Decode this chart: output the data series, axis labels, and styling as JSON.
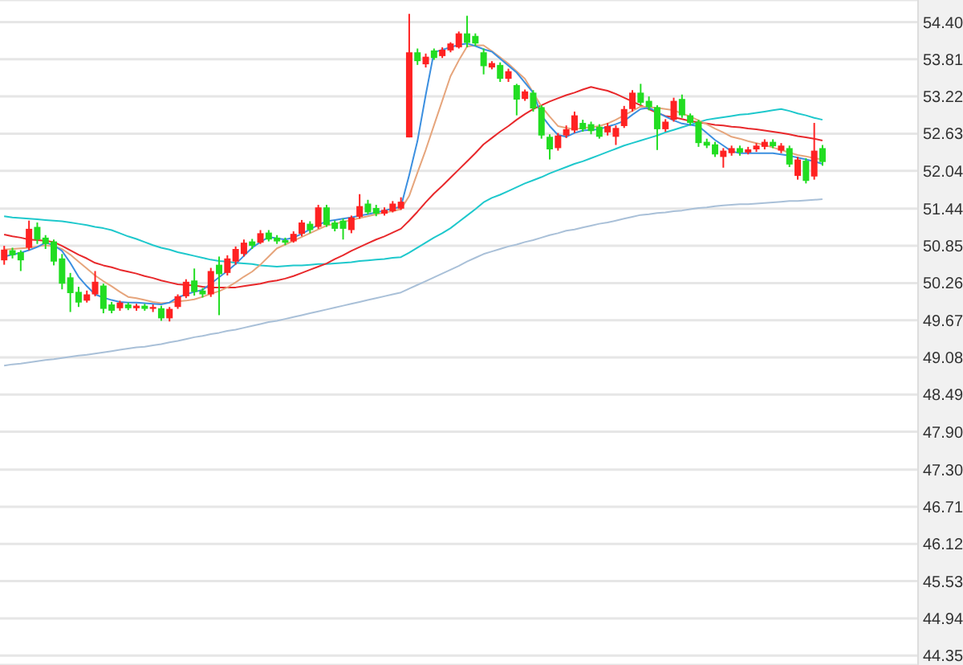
{
  "chart_data": {
    "type": "candlestick",
    "categories": [
      null,
      null,
      null,
      null,
      null,
      null,
      null,
      null,
      null,
      null,
      null,
      null,
      null,
      null,
      null,
      null,
      null,
      null,
      null,
      null,
      null,
      null,
      null,
      null,
      null,
      null,
      null,
      null,
      null,
      null,
      null,
      null,
      null,
      null,
      null,
      null,
      null,
      null,
      null,
      null,
      null,
      null,
      null,
      null,
      null,
      null,
      null,
      null,
      null,
      null,
      null,
      null,
      null,
      null,
      null,
      null,
      null,
      null,
      null,
      null,
      null,
      null,
      null,
      null,
      null,
      null,
      null,
      null,
      null,
      null,
      null,
      null,
      null,
      null,
      null,
      null,
      null,
      null,
      null,
      null,
      null,
      null,
      null,
      null,
      null,
      null,
      null,
      null,
      null,
      null,
      null,
      null,
      null,
      null,
      null,
      null,
      null,
      null,
      null,
      null
    ],
    "ohlc": [
      [
        50.62,
        50.85,
        50.55,
        50.79
      ],
      [
        50.78,
        50.82,
        50.65,
        50.7
      ],
      [
        50.75,
        50.78,
        50.45,
        50.62
      ],
      [
        50.82,
        51.25,
        50.78,
        51.12
      ],
      [
        51.15,
        51.22,
        50.88,
        50.95
      ],
      [
        50.98,
        51.02,
        50.8,
        50.88
      ],
      [
        50.92,
        50.95,
        50.54,
        50.6
      ],
      [
        50.65,
        50.72,
        50.16,
        50.25
      ],
      [
        50.35,
        50.42,
        49.8,
        50.1
      ],
      [
        50.12,
        50.2,
        49.88,
        49.95
      ],
      [
        49.98,
        50.14,
        49.95,
        50.08
      ],
      [
        50.08,
        50.45,
        50.05,
        50.28
      ],
      [
        50.22,
        50.25,
        49.78,
        49.85
      ],
      [
        49.92,
        49.96,
        49.78,
        49.82
      ],
      [
        49.86,
        49.98,
        49.82,
        49.95
      ],
      [
        49.92,
        49.95,
        49.83,
        49.86
      ],
      [
        49.86,
        49.93,
        49.82,
        49.9
      ],
      [
        49.9,
        49.93,
        49.82,
        49.85
      ],
      [
        49.85,
        49.92,
        49.8,
        49.88
      ],
      [
        49.86,
        49.9,
        49.66,
        49.7
      ],
      [
        49.7,
        49.88,
        49.65,
        49.85
      ],
      [
        49.88,
        50.08,
        49.85,
        50.05
      ],
      [
        50.05,
        50.32,
        50.02,
        50.28
      ],
      [
        50.3,
        50.49,
        50.06,
        50.12
      ],
      [
        50.14,
        50.18,
        50.03,
        50.08
      ],
      [
        50.08,
        50.5,
        50.04,
        50.45
      ],
      [
        50.55,
        50.68,
        49.75,
        50.4
      ],
      [
        50.42,
        50.7,
        50.38,
        50.65
      ],
      [
        50.6,
        50.84,
        50.55,
        50.8
      ],
      [
        50.72,
        50.95,
        50.68,
        50.9
      ],
      [
        50.92,
        50.96,
        50.8,
        50.85
      ],
      [
        50.9,
        51.1,
        50.88,
        51.05
      ],
      [
        51.06,
        51.1,
        50.92,
        50.95
      ],
      [
        50.98,
        51.02,
        50.88,
        50.92
      ],
      [
        50.94,
        50.98,
        50.86,
        50.9
      ],
      [
        50.92,
        51.08,
        50.9,
        51.04
      ],
      [
        51.04,
        51.26,
        51.0,
        51.22
      ],
      [
        51.2,
        51.24,
        51.05,
        51.1
      ],
      [
        51.15,
        51.5,
        51.12,
        51.46
      ],
      [
        51.46,
        51.5,
        51.15,
        51.18
      ],
      [
        51.22,
        51.25,
        51.08,
        51.12
      ],
      [
        51.25,
        51.28,
        50.95,
        51.12
      ],
      [
        51.1,
        51.33,
        51.05,
        51.3
      ],
      [
        51.31,
        51.67,
        51.28,
        51.48
      ],
      [
        51.52,
        51.58,
        51.35,
        51.38
      ],
      [
        51.45,
        51.5,
        51.32,
        51.36
      ],
      [
        51.36,
        51.46,
        51.33,
        51.42
      ],
      [
        51.4,
        51.56,
        51.38,
        51.52
      ],
      [
        51.44,
        51.62,
        51.42,
        51.55
      ],
      [
        52.57,
        54.53,
        52.57,
        53.92
      ],
      [
        53.92,
        53.98,
        53.72,
        53.78
      ],
      [
        53.73,
        53.9,
        53.68,
        53.85
      ],
      [
        53.95,
        53.98,
        53.8,
        53.83
      ],
      [
        53.86,
        54.0,
        53.83,
        53.96
      ],
      [
        53.95,
        54.08,
        53.92,
        54.06
      ],
      [
        54.0,
        54.25,
        53.98,
        54.22
      ],
      [
        54.22,
        54.5,
        54.0,
        54.07
      ],
      [
        54.18,
        54.22,
        54.02,
        54.06
      ],
      [
        53.92,
        53.98,
        53.57,
        53.7
      ],
      [
        53.68,
        53.78,
        53.65,
        53.75
      ],
      [
        53.72,
        53.76,
        53.45,
        53.5
      ],
      [
        53.5,
        53.66,
        53.45,
        53.62
      ],
      [
        53.4,
        53.42,
        52.92,
        53.17
      ],
      [
        53.18,
        53.33,
        53.15,
        53.3
      ],
      [
        53.28,
        53.32,
        52.98,
        53.03
      ],
      [
        53.05,
        53.08,
        52.55,
        52.6
      ],
      [
        52.58,
        52.62,
        52.22,
        52.38
      ],
      [
        52.4,
        52.64,
        52.36,
        52.6
      ],
      [
        52.6,
        52.76,
        52.56,
        52.7
      ],
      [
        52.68,
        52.98,
        52.64,
        52.92
      ],
      [
        52.8,
        52.85,
        52.66,
        52.7
      ],
      [
        52.78,
        52.82,
        52.62,
        52.67
      ],
      [
        52.74,
        52.78,
        52.55,
        52.58
      ],
      [
        52.65,
        52.8,
        52.6,
        52.75
      ],
      [
        52.58,
        52.76,
        52.45,
        52.72
      ],
      [
        52.75,
        53.07,
        52.72,
        53.02
      ],
      [
        53.02,
        53.32,
        52.98,
        53.28
      ],
      [
        53.28,
        53.42,
        53.08,
        53.12
      ],
      [
        53.15,
        53.22,
        53.0,
        53.05
      ],
      [
        53.05,
        53.08,
        52.37,
        52.7
      ],
      [
        52.7,
        52.86,
        52.66,
        52.82
      ],
      [
        52.85,
        53.2,
        52.82,
        53.15
      ],
      [
        53.18,
        53.25,
        52.88,
        52.92
      ],
      [
        52.92,
        52.95,
        52.76,
        52.8
      ],
      [
        52.82,
        52.85,
        52.42,
        52.48
      ],
      [
        52.5,
        52.55,
        52.4,
        52.44
      ],
      [
        52.46,
        52.5,
        52.26,
        52.3
      ],
      [
        52.26,
        52.4,
        52.09,
        52.36
      ],
      [
        52.32,
        52.44,
        52.28,
        52.4
      ],
      [
        52.4,
        52.44,
        52.28,
        52.33
      ],
      [
        52.33,
        52.42,
        52.3,
        52.38
      ],
      [
        52.38,
        52.48,
        52.34,
        52.44
      ],
      [
        52.42,
        52.54,
        52.38,
        52.5
      ],
      [
        52.5,
        52.54,
        52.4,
        52.43
      ],
      [
        52.36,
        52.48,
        52.32,
        52.44
      ],
      [
        52.4,
        52.44,
        52.1,
        52.14
      ],
      [
        51.96,
        52.26,
        51.9,
        52.22
      ],
      [
        52.2,
        52.24,
        51.84,
        51.88
      ],
      [
        51.95,
        52.8,
        51.9,
        52.36
      ],
      [
        52.4,
        52.45,
        52.12,
        52.18
      ]
    ],
    "colors": [
      "#ff2222",
      "#22dd22",
      "#22dd22",
      "#ff2222",
      "#22dd22",
      "#22dd22",
      "#22dd22",
      "#22dd22",
      "#22dd22",
      "#22dd22",
      "#ff2222",
      "#ff2222",
      "#22dd22",
      "#22dd22",
      "#ff2222",
      "#22dd22",
      "#ff2222",
      "#22dd22",
      "#ff2222",
      "#22dd22",
      "#ff2222",
      "#ff2222",
      "#ff2222",
      "#22dd22",
      "#22dd22",
      "#ff2222",
      "#22dd22",
      "#ff2222",
      "#ff2222",
      "#ff2222",
      "#22dd22",
      "#ff2222",
      "#22dd22",
      "#22dd22",
      "#22dd22",
      "#ff2222",
      "#ff2222",
      "#22dd22",
      "#ff2222",
      "#22dd22",
      "#22dd22",
      "#22dd22",
      "#ff2222",
      "#ff2222",
      "#22dd22",
      "#22dd22",
      "#ff2222",
      "#ff2222",
      "#ff2222",
      "#ff2222",
      "#22dd22",
      "#ff2222",
      "#22dd22",
      "#ff2222",
      "#ff2222",
      "#ff2222",
      "#22dd22",
      "#22dd22",
      "#22dd22",
      "#ff2222",
      "#22dd22",
      "#ff2222",
      "#22dd22",
      "#ff2222",
      "#22dd22",
      "#22dd22",
      "#22dd22",
      "#ff2222",
      "#ff2222",
      "#ff2222",
      "#22dd22",
      "#22dd22",
      "#22dd22",
      "#ff2222",
      "#ff2222",
      "#ff2222",
      "#ff2222",
      "#22dd22",
      "#22dd22",
      "#22dd22",
      "#ff2222",
      "#ff2222",
      "#22dd22",
      "#22dd22",
      "#22dd22",
      "#22dd22",
      "#22dd22",
      "#ff2222",
      "#ff2222",
      "#22dd22",
      "#ff2222",
      "#ff2222",
      "#ff2222",
      "#22dd22",
      "#ff2222",
      "#22dd22",
      "#ff2222",
      "#22dd22",
      "#ff2222",
      "#22dd22"
    ],
    "series": [
      {
        "type": "line",
        "color": "#a9c0d8",
        "values": [
          48.95,
          48.97,
          48.98,
          49.0,
          49.02,
          49.04,
          49.05,
          49.07,
          49.09,
          49.11,
          49.12,
          49.14,
          49.16,
          49.18,
          49.2,
          49.22,
          49.24,
          49.25,
          49.27,
          49.29,
          49.32,
          49.34,
          49.37,
          49.4,
          49.42,
          49.45,
          49.47,
          49.5,
          49.52,
          49.55,
          49.58,
          49.61,
          49.64,
          49.66,
          49.69,
          49.72,
          49.75,
          49.78,
          49.81,
          49.84,
          49.87,
          49.9,
          49.93,
          49.96,
          49.99,
          50.02,
          50.05,
          50.08,
          50.11,
          50.17,
          50.23,
          50.29,
          50.35,
          50.41,
          50.47,
          50.53,
          50.6,
          50.66,
          50.72,
          50.76,
          50.8,
          50.84,
          50.87,
          50.91,
          50.94,
          50.98,
          51.02,
          51.05,
          51.09,
          51.11,
          51.14,
          51.17,
          51.2,
          51.22,
          51.25,
          51.28,
          51.31,
          51.34,
          51.35,
          51.37,
          51.38,
          51.4,
          51.41,
          51.43,
          51.45,
          51.46,
          51.48,
          51.49,
          51.5,
          51.51,
          51.51,
          51.52,
          51.53,
          51.54,
          51.55,
          51.56,
          51.56,
          51.57,
          51.58,
          51.59
        ]
      },
      {
        "type": "line",
        "color": "#1ec8cc",
        "values": [
          51.32,
          51.3,
          51.29,
          51.28,
          51.27,
          51.26,
          51.25,
          51.24,
          51.22,
          51.2,
          51.18,
          51.15,
          51.13,
          51.1,
          51.05,
          51.0,
          50.96,
          50.91,
          50.86,
          50.82,
          50.79,
          50.75,
          50.72,
          50.69,
          50.66,
          50.63,
          50.61,
          50.6,
          50.58,
          50.57,
          50.56,
          50.54,
          50.53,
          50.52,
          50.53,
          50.54,
          50.54,
          50.55,
          50.56,
          50.56,
          50.57,
          50.58,
          50.59,
          50.61,
          50.62,
          50.63,
          50.64,
          50.66,
          50.67,
          50.74,
          50.82,
          50.9,
          50.98,
          51.05,
          51.13,
          51.23,
          51.33,
          51.43,
          51.54,
          51.61,
          51.66,
          51.72,
          51.78,
          51.84,
          51.89,
          51.94,
          52.0,
          52.05,
          52.1,
          52.15,
          52.19,
          52.24,
          52.29,
          52.34,
          52.39,
          52.44,
          52.48,
          52.52,
          52.56,
          52.6,
          52.65,
          52.69,
          52.73,
          52.77,
          52.81,
          52.85,
          52.87,
          52.89,
          52.91,
          52.93,
          52.94,
          52.96,
          52.98,
          53.0,
          53.02,
          52.99,
          52.95,
          52.92,
          52.88,
          52.85
        ]
      },
      {
        "type": "line",
        "color": "#e8282b",
        "values": [
          51.03,
          51.0,
          50.98,
          50.95,
          50.94,
          50.93,
          50.91,
          50.85,
          50.78,
          50.71,
          50.65,
          50.58,
          50.54,
          50.51,
          50.47,
          50.44,
          50.41,
          50.37,
          50.34,
          50.3,
          50.27,
          50.24,
          50.23,
          50.22,
          50.2,
          50.19,
          50.19,
          50.19,
          50.19,
          50.21,
          50.23,
          50.25,
          50.28,
          50.3,
          50.33,
          50.37,
          50.42,
          50.47,
          50.52,
          50.57,
          50.64,
          50.7,
          50.77,
          50.83,
          50.89,
          50.95,
          51.0,
          51.06,
          51.12,
          51.25,
          51.39,
          51.54,
          51.68,
          51.8,
          51.93,
          52.06,
          52.19,
          52.32,
          52.46,
          52.56,
          52.66,
          52.75,
          52.85,
          52.94,
          53.02,
          53.08,
          53.14,
          53.19,
          53.24,
          53.28,
          53.33,
          53.37,
          53.34,
          53.31,
          53.26,
          53.2,
          53.14,
          53.08,
          53.02,
          52.96,
          52.91,
          52.89,
          52.86,
          52.83,
          52.81,
          52.79,
          52.77,
          52.76,
          52.74,
          52.73,
          52.71,
          52.7,
          52.68,
          52.66,
          52.64,
          52.62,
          52.59,
          52.57,
          52.55,
          52.52
        ]
      },
      {
        "type": "line",
        "color": "#e6a57c",
        "values": [
          50.79,
          50.8,
          50.81,
          50.82,
          50.84,
          50.86,
          50.84,
          50.8,
          50.71,
          50.6,
          50.49,
          50.38,
          50.29,
          50.21,
          50.12,
          50.04,
          50.02,
          49.99,
          49.96,
          49.94,
          49.95,
          49.97,
          49.98,
          50.0,
          50.04,
          50.09,
          50.13,
          50.19,
          50.27,
          50.36,
          50.44,
          50.55,
          50.68,
          50.81,
          50.87,
          50.93,
          50.99,
          51.05,
          51.11,
          51.17,
          51.2,
          51.23,
          51.26,
          51.29,
          51.32,
          51.35,
          51.38,
          51.4,
          51.43,
          51.64,
          52.01,
          52.37,
          52.76,
          53.15,
          53.54,
          53.79,
          54.01,
          54.03,
          54.03,
          53.94,
          53.84,
          53.74,
          53.62,
          53.5,
          53.28,
          53.06,
          52.9,
          52.75,
          52.72,
          52.7,
          52.72,
          52.73,
          52.75,
          52.79,
          52.85,
          52.92,
          52.99,
          53.06,
          53.05,
          53.04,
          53.02,
          53.0,
          52.95,
          52.9,
          52.84,
          52.78,
          52.71,
          52.65,
          52.58,
          52.55,
          52.51,
          52.48,
          52.45,
          52.41,
          52.37,
          52.33,
          52.29,
          52.27,
          52.24,
          52.22
        ]
      },
      {
        "type": "line",
        "color": "#3b8fe0",
        "values": [
          50.68,
          50.71,
          50.74,
          50.78,
          50.83,
          50.9,
          50.86,
          50.77,
          50.58,
          50.36,
          50.21,
          50.08,
          50.03,
          49.99,
          49.96,
          49.95,
          49.95,
          49.94,
          49.93,
          49.92,
          49.95,
          50.03,
          50.08,
          50.12,
          50.15,
          50.25,
          50.35,
          50.45,
          50.56,
          50.69,
          50.82,
          50.91,
          50.99,
          50.97,
          50.95,
          50.98,
          51.04,
          51.11,
          51.18,
          51.24,
          51.26,
          51.28,
          51.3,
          51.33,
          51.35,
          51.38,
          51.41,
          51.44,
          51.47,
          51.97,
          52.51,
          53.24,
          53.92,
          53.96,
          54.0,
          54.04,
          54.06,
          54.02,
          53.97,
          53.93,
          53.82,
          53.71,
          53.6,
          53.44,
          53.28,
          52.92,
          52.75,
          52.61,
          52.58,
          52.64,
          52.68,
          52.69,
          52.7,
          52.74,
          52.78,
          52.83,
          52.93,
          53.02,
          53.04,
          52.97,
          52.9,
          52.84,
          52.79,
          52.77,
          52.75,
          52.64,
          52.53,
          52.44,
          52.35,
          52.32,
          52.32,
          52.32,
          52.32,
          52.32,
          52.3,
          52.28,
          52.25,
          52.22,
          52.19,
          52.15
        ]
      }
    ],
    "ylim": [
      44.2,
      54.75
    ],
    "yticks": [
      {
        "value": 54.4,
        "label": "54.40"
      },
      53.81,
      53.22,
      52.63,
      52.04,
      51.44,
      50.85,
      50.26,
      49.67,
      49.08,
      48.49,
      {
        "value": 47.9,
        "label": "47.90"
      },
      {
        "value": 47.3,
        "label": "47.30"
      },
      46.71,
      46.12,
      45.53,
      44.94,
      44.35
    ],
    "grid": "y",
    "tick_labels": "y"
  }
}
